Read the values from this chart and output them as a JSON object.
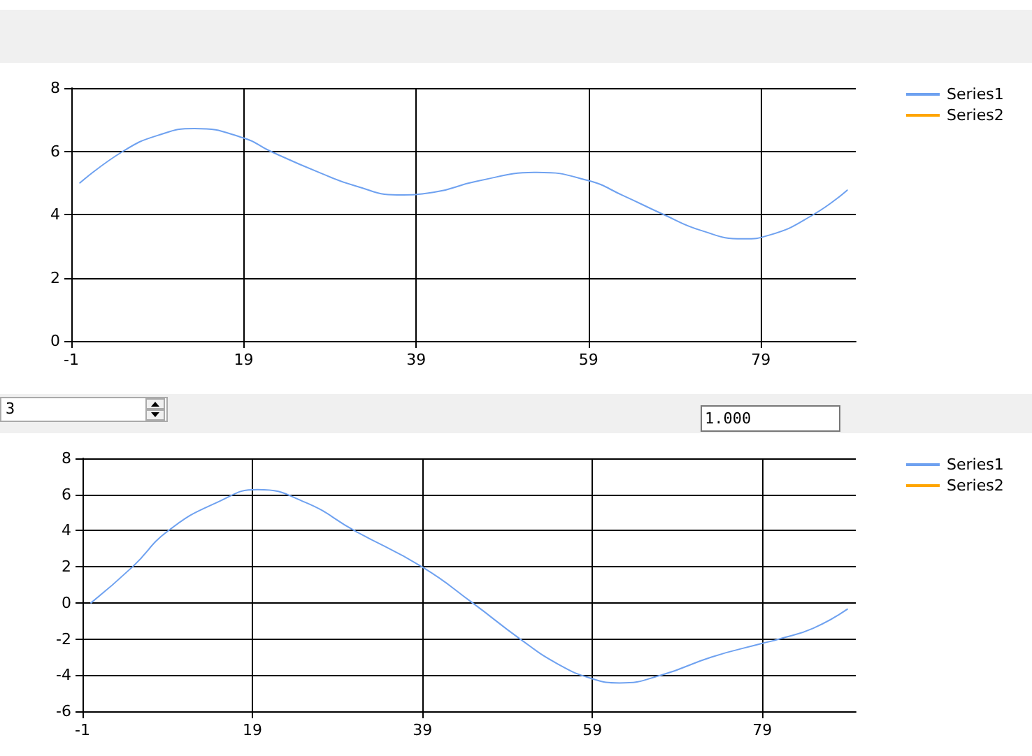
{
  "chart_data": [
    {
      "type": "line",
      "xlim": [
        -1,
        90
      ],
      "xticks": [
        -1,
        19,
        39,
        59,
        79
      ],
      "ylim": [
        0,
        8
      ],
      "yticks": [
        0,
        2,
        4,
        6,
        8
      ],
      "grid": true,
      "legend": "top right",
      "marker": "none",
      "line_style": "solid",
      "series": [
        {
          "name": "Series1",
          "color": "#6ea1f0",
          "x": [
            0,
            5,
            9,
            13.3,
            19,
            22.1,
            28,
            32,
            36.8,
            41,
            46,
            53,
            59,
            63,
            67.7,
            72,
            76.9,
            80,
            85.1,
            89
          ],
          "values": [
            5.0,
            6.0,
            6.5,
            6.72,
            6.42,
            6.0,
            5.3,
            4.9,
            4.62,
            4.7,
            5.05,
            5.33,
            5.07,
            4.6,
            4.0,
            3.5,
            3.23,
            3.35,
            4.0,
            4.77
          ]
        },
        {
          "name": "Series2",
          "color": "#ffa500"
        }
      ]
    },
    {
      "type": "other",
      "annotations": [
        "3",
        "1.000"
      ]
    },
    {
      "type": "line",
      "xlim": [
        -1,
        90
      ],
      "xticks": [
        -1,
        19,
        39,
        59,
        79
      ],
      "ylim": [
        -6,
        8
      ],
      "yticks": [
        -6,
        -4,
        -2,
        0,
        2,
        4,
        6,
        8
      ],
      "grid": true,
      "legend": "top right",
      "marker": "none",
      "line_style": "solid",
      "series": [
        {
          "name": "Series1",
          "color": "#6ea1f0",
          "x": [
            0,
            4.9,
            9.1,
            15,
            19.6,
            25.2,
            31,
            39,
            44.9,
            50.5,
            55,
            59,
            62.2,
            67.1,
            73,
            79,
            81,
            85,
            89
          ],
          "values": [
            0,
            2,
            4,
            5.6,
            6.27,
            5.57,
            4,
            1.98,
            0,
            -2,
            -3.4,
            -4.2,
            -4.43,
            -4.0,
            -3.0,
            -2.24,
            -2.0,
            -1.4,
            -0.35
          ]
        },
        {
          "name": "Series2",
          "color": "#ffa500"
        }
      ]
    }
  ]
}
